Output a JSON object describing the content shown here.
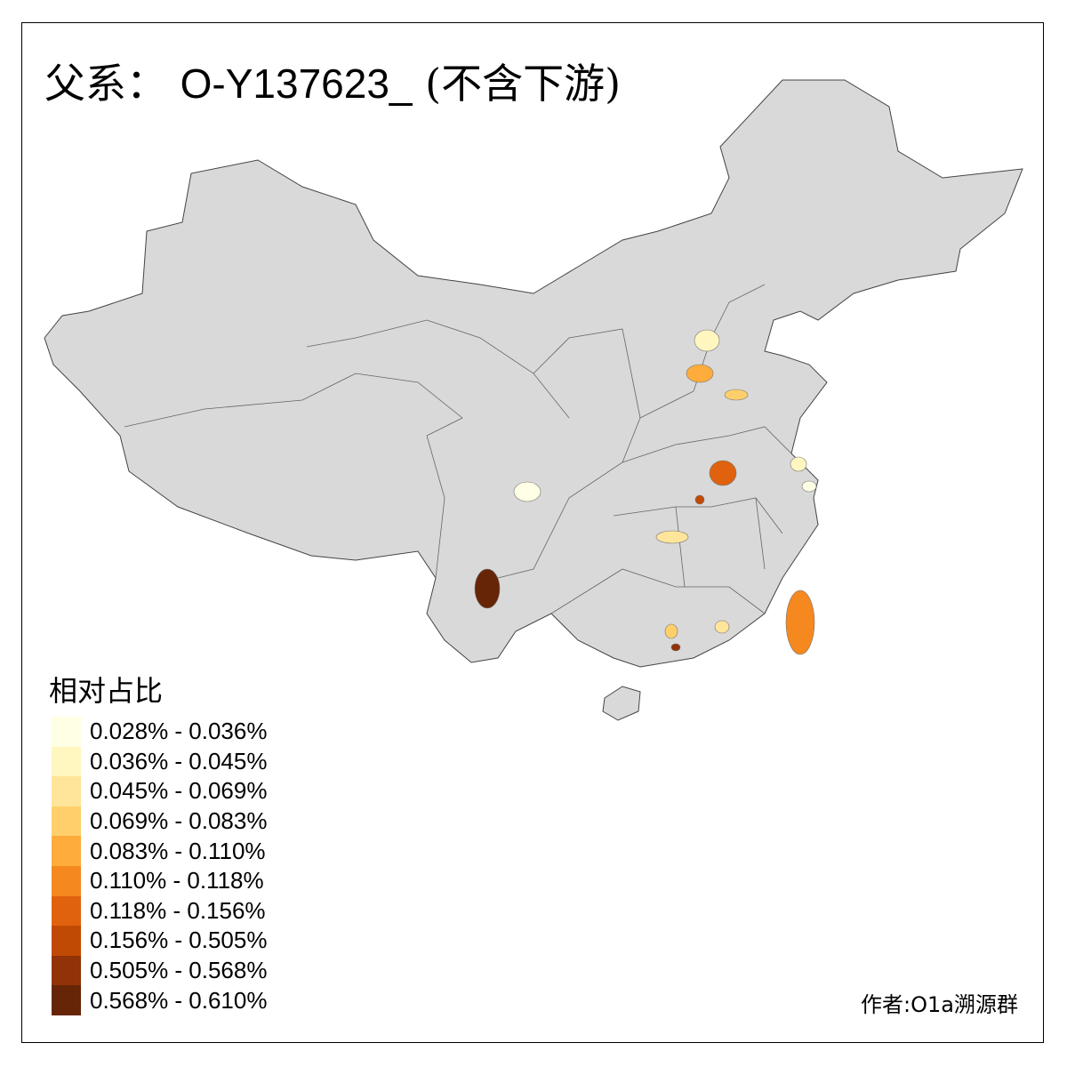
{
  "title": {
    "prefix": "父系：",
    "code": "O-Y137623_",
    "suffix": "(不含下游)"
  },
  "legend": {
    "title": "相对占比",
    "items": [
      {
        "label": "0.028% - 0.036%",
        "color": "#FFFFE5"
      },
      {
        "label": "0.036% - 0.045%",
        "color": "#FFF6C0"
      },
      {
        "label": "0.045% - 0.069%",
        "color": "#FEE59A"
      },
      {
        "label": "0.069% - 0.083%",
        "color": "#FECF6A"
      },
      {
        "label": "0.083% - 0.110%",
        "color": "#FEAC3C"
      },
      {
        "label": "0.110% - 0.118%",
        "color": "#F5881F"
      },
      {
        "label": "0.118% - 0.156%",
        "color": "#E0620F"
      },
      {
        "label": "0.156% - 0.505%",
        "color": "#C04A03"
      },
      {
        "label": "0.505% - 0.568%",
        "color": "#913208"
      },
      {
        "label": "0.568% - 0.610%",
        "color": "#662506"
      }
    ]
  },
  "map": {
    "base_color": "#D9D9D9",
    "border_color": "#555555"
  },
  "credit": "作者:O1a溯源群"
}
